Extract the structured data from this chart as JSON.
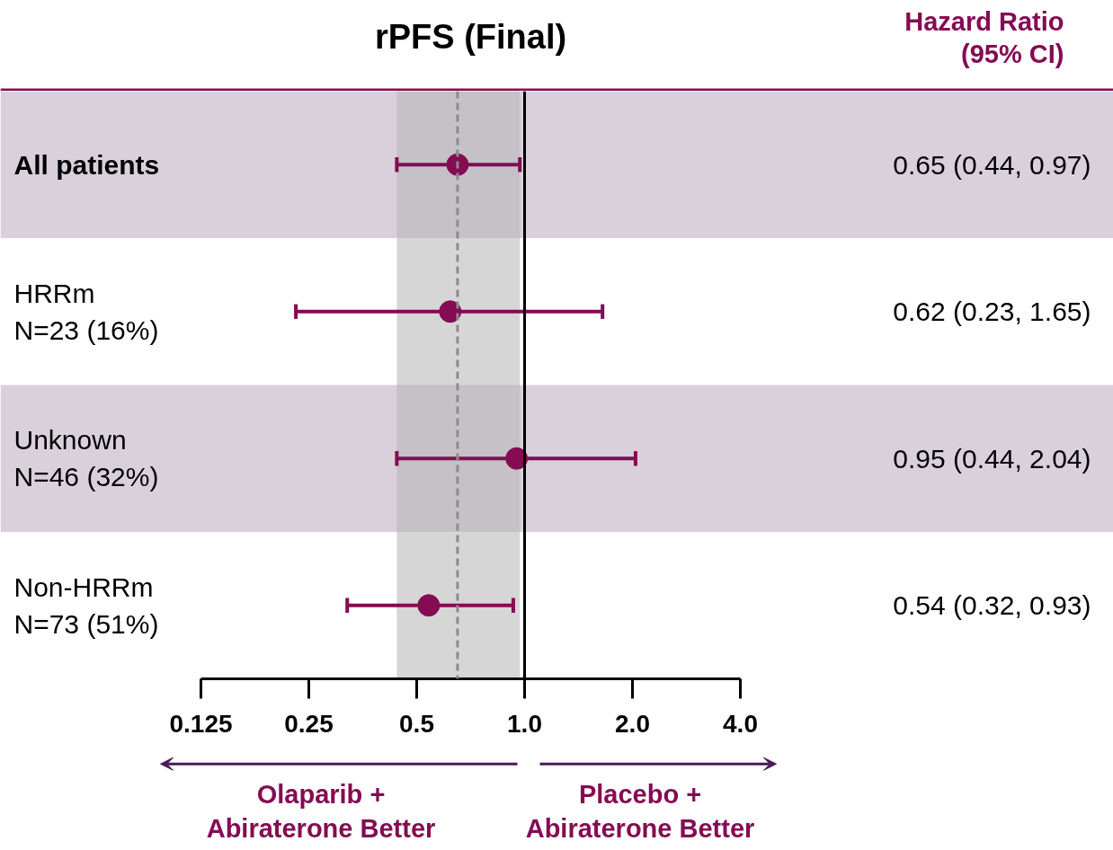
{
  "chart_data": {
    "type": "scatter",
    "orientation": "horizontal",
    "title": "rPFS (Final)",
    "categories": [
      "All patients",
      "HRRm\nN=23 (16%)",
      "Unknown\nN=46 (32%)",
      "Non-HRRm\nN=73 (51%)"
    ],
    "color": "#850b52",
    "values": [
      0.65,
      0.62,
      0.95,
      0.54
    ],
    "errors": [
      [
        0.44,
        0.97
      ],
      [
        0.23,
        1.65
      ],
      [
        0.44,
        2.04
      ],
      [
        0.32,
        0.93
      ]
    ],
    "value_labels": [
      "0.65 (0.44, 0.97)",
      "0.62 (0.23, 1.65)",
      "0.95 (0.44, 2.04)",
      "0.54 (0.32, 0.93)"
    ],
    "log": "x",
    "xlim": [
      0.125,
      4.0
    ],
    "xticks": [
      0.125,
      0.25,
      0.5,
      {
        "value": 1,
        "label": "1.0"
      },
      {
        "value": 2,
        "label": "2.0"
      },
      {
        "value": 4,
        "label": "4.0"
      }
    ],
    "ref_lines": [
      {
        "axis": "x",
        "value": 1,
        "color": "#000000",
        "line_style": "solid"
      },
      {
        "axis": "x",
        "value": 0.65,
        "color": "#8c8c8c",
        "line_style": "dashed"
      }
    ],
    "bands": [
      {
        "axis": "x",
        "from": 0.44,
        "to": 0.97,
        "color": "#b4b4b4"
      }
    ],
    "marker": "circle",
    "grid": false,
    "annotations": [
      "Hazard Ratio\n(95% CI)",
      "Olaparib +\nAbiraterone Better",
      "Placebo +\nAbiraterone Better"
    ]
  }
}
